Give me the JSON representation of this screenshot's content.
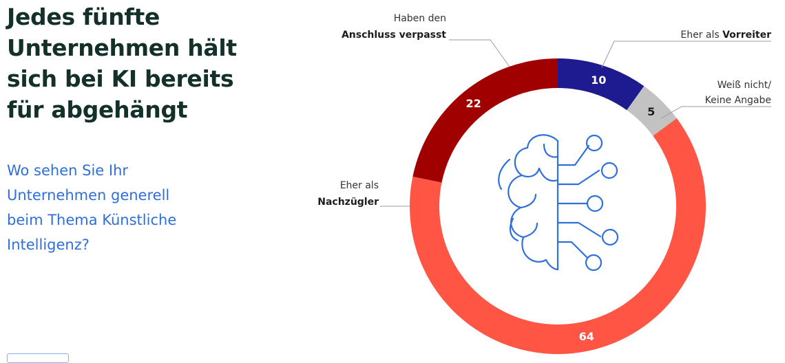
{
  "title_lines": [
    "Jedes fünfte",
    "Unternehmen hält",
    "sich bei KI bereits",
    "für abgehängt"
  ],
  "question_lines": [
    "Wo sehen Sie Ihr",
    "Unternehmen generell",
    "beim Thema Künstliche",
    "Intelligenz?"
  ],
  "chart_data": {
    "type": "pie",
    "variant": "donut",
    "title": "Jedes fünfte Unternehmen hält sich bei KI bereits für abgehängt",
    "subtitle": "Wo sehen Sie Ihr Unternehmen generell beim Thema Künstliche Intelligenz?",
    "slices": [
      {
        "key": "vorreiter",
        "label_line1_regular": "Eher als ",
        "label_line1_bold": "Vorreiter",
        "label_line2_regular": "",
        "label_line2_bold": "",
        "value": 10,
        "color": "#1e1a8f"
      },
      {
        "key": "weiss_nicht",
        "label_line1_regular": "Weiß nicht/",
        "label_line1_bold": "",
        "label_line2_regular": "Keine Angabe",
        "label_line2_bold": "",
        "value": 5,
        "color": "#c2c2c2"
      },
      {
        "key": "nachzuegler",
        "label_line1_regular": "Eher als",
        "label_line1_bold": "",
        "label_line2_regular": "",
        "label_line2_bold": "Nachzügler",
        "value": 64,
        "color": "#ff5545"
      },
      {
        "key": "verpasst",
        "label_line1_regular": "Haben den",
        "label_line1_bold": "",
        "label_line2_regular": "",
        "label_line2_bold": "Anschluss verpasst",
        "value": 22,
        "color": "#a10000"
      }
    ],
    "center_icon": "brain-circuit-icon"
  }
}
